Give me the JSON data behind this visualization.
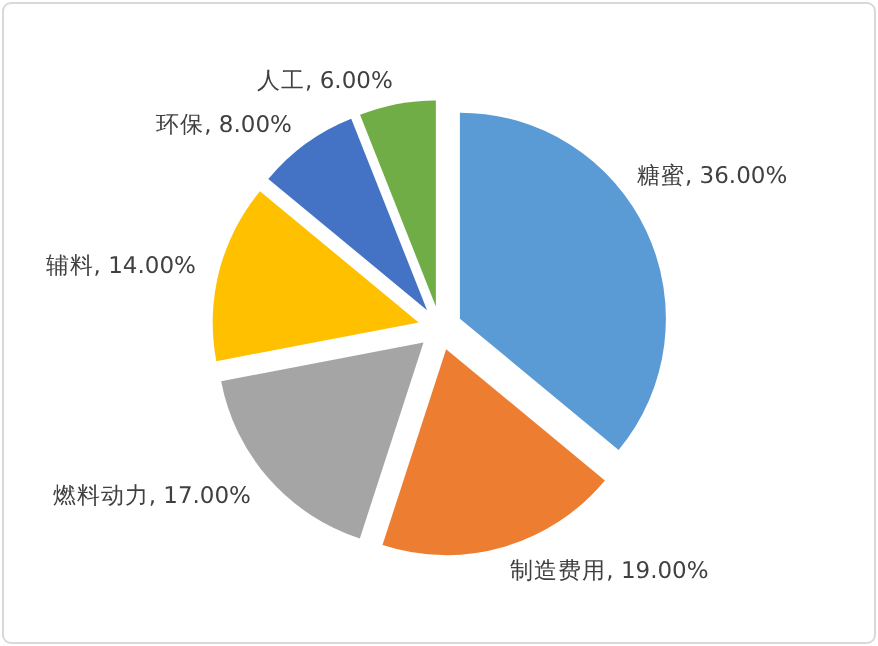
{
  "chart_data": {
    "type": "pie",
    "categories": [
      "糖蜜",
      "制造费用",
      "燃料动力",
      "辅料",
      "环保",
      "人工"
    ],
    "values": [
      36,
      19,
      17,
      14,
      8,
      6
    ],
    "value_labels": [
      "36.00%",
      "19.00%",
      "17.00%",
      "14.00%",
      "8.00%",
      "6.00%"
    ],
    "colors": [
      "#5b9bd5",
      "#ed7d31",
      "#a5a5a5",
      "#ffc000",
      "#4472c4",
      "#70ad47"
    ]
  }
}
